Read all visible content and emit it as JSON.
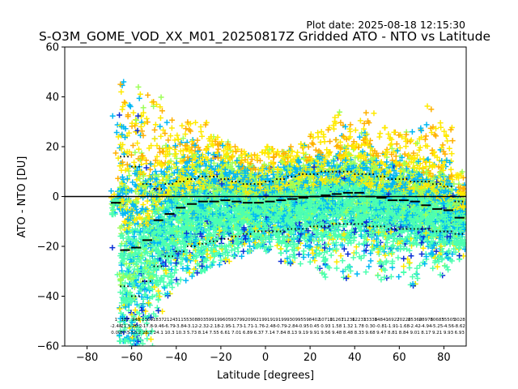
{
  "chart_data": {
    "type": "scatter",
    "plot_date": "Plot date: 2025-08-18 12:15:30",
    "title": "S-O3M_GOME_VOD_XX_M01_20250817Z Gridded ATO - NTO vs Latitude",
    "xlabel": "Latitude [degrees]",
    "ylabel": "ATO - NTO [DU]",
    "xlim": [
      -90,
      90
    ],
    "ylim": [
      -60,
      60
    ],
    "x_ticks": [
      -80,
      -60,
      -40,
      -20,
      0,
      20,
      40,
      60,
      80
    ],
    "y_ticks": [
      -60,
      -40,
      -20,
      0,
      20,
      40,
      60
    ],
    "zero_line": true,
    "marker": "+",
    "colors": [
      "#0a2fd6",
      "#00b8f5",
      "#4dffb0",
      "#9dff57",
      "#ffea00",
      "#ffb000"
    ],
    "bins": [
      {
        "lat": -67,
        "mean": -2.5,
        "p_low": -2.5,
        "p_high": -2.5,
        "min": -50,
        "max": 50
      },
      {
        "lat": -63,
        "mean": -21.5,
        "p_low": -36,
        "p_high": 16,
        "min": -58,
        "max": 50
      },
      {
        "lat": -58,
        "mean": -20.5,
        "p_low": -40,
        "p_high": 12,
        "min": -60,
        "max": 44
      },
      {
        "lat": -53,
        "mean": -17.5,
        "p_low": -34,
        "p_high": 5,
        "min": -60,
        "max": 42
      },
      {
        "lat": -48,
        "mean": -9.5,
        "p_low": -28,
        "p_high": 3,
        "min": -48,
        "max": 40
      },
      {
        "lat": -43,
        "mean": -7,
        "p_low": -24,
        "p_high": 5,
        "min": -40,
        "max": 32
      },
      {
        "lat": -38,
        "mean": -4.5,
        "p_low": -22,
        "p_high": 6,
        "min": -35,
        "max": 30
      },
      {
        "lat": -33,
        "mean": -3,
        "p_low": -20,
        "p_high": 7,
        "min": -32,
        "max": 32
      },
      {
        "lat": -28,
        "mean": -2,
        "p_low": -19,
        "p_high": 8,
        "min": -30,
        "max": 30
      },
      {
        "lat": -23,
        "mean": -2,
        "p_low": -18,
        "p_high": 8,
        "min": -28,
        "max": 24
      },
      {
        "lat": -18,
        "mean": -1.5,
        "p_low": -17,
        "p_high": 7,
        "min": -26,
        "max": 22
      },
      {
        "lat": -13,
        "mean": -2,
        "p_low": -16,
        "p_high": 6,
        "min": -24,
        "max": 20
      },
      {
        "lat": -8,
        "mean": -2.5,
        "p_low": -15,
        "p_high": 5,
        "min": -22,
        "max": 18
      },
      {
        "lat": -3,
        "mean": -2.5,
        "p_low": -14,
        "p_high": 5,
        "min": -20,
        "max": 18
      },
      {
        "lat": 2,
        "mean": -2,
        "p_low": -14,
        "p_high": 6,
        "min": -22,
        "max": 20
      },
      {
        "lat": 7,
        "mean": -1.5,
        "p_low": -14,
        "p_high": 7,
        "min": -26,
        "max": 18
      },
      {
        "lat": 12,
        "mean": -1,
        "p_low": -13,
        "p_high": 8,
        "min": -27,
        "max": 20
      },
      {
        "lat": 17,
        "mean": -0.5,
        "p_low": -13,
        "p_high": 9,
        "min": -28,
        "max": 22
      },
      {
        "lat": 22,
        "mean": 0,
        "p_low": -12,
        "p_high": 9,
        "min": -30,
        "max": 26
      },
      {
        "lat": 27,
        "mean": 0.5,
        "p_low": -12,
        "p_high": 10,
        "min": -33,
        "max": 28
      },
      {
        "lat": 32,
        "mean": 1,
        "p_low": -11,
        "p_high": 10,
        "min": -34,
        "max": 34
      },
      {
        "lat": 37,
        "mean": 1.5,
        "p_low": -11,
        "p_high": 10,
        "min": -33,
        "max": 30
      },
      {
        "lat": 42,
        "mean": 1.5,
        "p_low": -11,
        "p_high": 9,
        "min": -32,
        "max": 32
      },
      {
        "lat": 47,
        "mean": 0,
        "p_low": -12,
        "p_high": 9,
        "min": -35,
        "max": 36
      },
      {
        "lat": 52,
        "mean": -0.5,
        "p_low": -12,
        "p_high": 8,
        "min": -34,
        "max": 28
      },
      {
        "lat": 57,
        "mean": -1.5,
        "p_low": -13,
        "p_high": 7,
        "min": -34,
        "max": 27
      },
      {
        "lat": 62,
        "mean": -1.5,
        "p_low": -13,
        "p_high": 7,
        "min": -35,
        "max": 26
      },
      {
        "lat": 67,
        "mean": -2,
        "p_low": -13,
        "p_high": 6,
        "min": -36,
        "max": 28
      },
      {
        "lat": 72,
        "mean": -3.5,
        "p_low": -13,
        "p_high": 6,
        "min": -34,
        "max": 38
      },
      {
        "lat": 77,
        "mean": -5,
        "p_low": -14,
        "p_high": 5,
        "min": -33,
        "max": 30
      },
      {
        "lat": 82,
        "mean": -5.5,
        "p_low": -14,
        "p_high": 4,
        "min": -30,
        "max": 28
      },
      {
        "lat": 87,
        "mean": -8.5,
        "p_low": -15,
        "p_high": -2,
        "min": -28,
        "max": 10
      }
    ],
    "bin_labels": [
      [
        "1",
        "-2.48",
        "0.00"
      ],
      [
        "327",
        "-21.5",
        "37.5"
      ],
      [
        "948",
        "-20.2",
        "50.2"
      ],
      [
        "1369",
        "-17.8",
        "28.7"
      ],
      [
        "1837",
        "-9.46",
        "24.1"
      ],
      [
        "2124",
        "-6.79",
        "10.3"
      ],
      [
        "3115",
        "-3.84",
        "10.3"
      ],
      [
        "5308",
        "-3.12",
        "5.73"
      ],
      [
        "8035",
        "-2.32",
        "8.14"
      ],
      [
        "9919",
        "-2.18",
        "7.55"
      ],
      [
        "9605",
        "-2.95",
        "6.61"
      ],
      [
        "9379",
        "-1.73",
        "7.01"
      ],
      [
        "9209",
        "-1.71",
        "6.89"
      ],
      [
        "9219",
        "-1.76",
        "6.37"
      ],
      [
        "9191",
        "-2.48",
        "7.14"
      ],
      [
        "9199",
        "-0.79",
        "7.84"
      ],
      [
        "9309",
        "-2.84",
        "8.13"
      ],
      [
        "9559",
        "-0.95",
        "9.19"
      ],
      [
        "8402",
        "0.45",
        "9.91"
      ],
      [
        "10710",
        "0.93",
        "9.56"
      ],
      [
        "11267",
        "1.58",
        "9.48"
      ],
      [
        "11236",
        "1.32",
        "8.48"
      ],
      [
        "12233",
        "1.78",
        "8.33"
      ],
      [
        "13338",
        "0.30",
        "9.68"
      ],
      [
        "14841",
        "-0.81",
        "9.47"
      ],
      [
        "16927",
        "-1.91",
        "8.81"
      ],
      [
        "20226",
        "-1.68",
        "8.84"
      ],
      [
        "25360",
        "-2.42",
        "9.01"
      ],
      [
        "28976",
        "-4.94",
        "8.17"
      ],
      [
        "30685",
        "-5.25",
        "9.21"
      ],
      [
        "35505",
        "-4.56",
        "9.93"
      ],
      [
        "3028",
        "-8.62",
        "6.93"
      ]
    ]
  }
}
